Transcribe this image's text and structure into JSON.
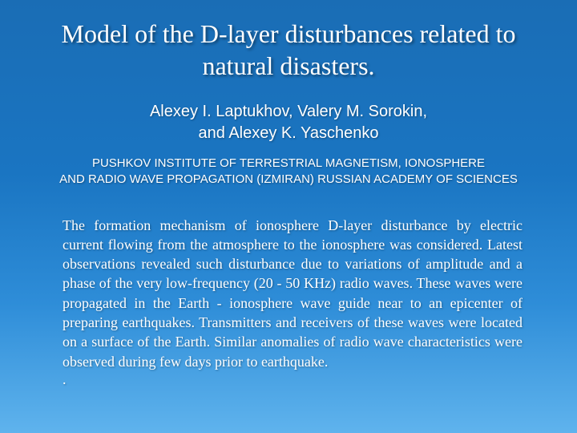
{
  "slide": {
    "background_gradient": [
      "#1a6db5",
      "#1a75c2",
      "#2e8dd8",
      "#5fb3ed"
    ],
    "text_color": "#ffffff",
    "shadow_color": "rgba(0,0,0,0.45)",
    "title": "Model of the D-layer disturbances related to natural disasters.",
    "title_fontsize": 32,
    "title_fontfamily": "Times New Roman",
    "authors_line1": "Alexey I. Laptukhov, Valery M. Sorokin,",
    "authors_line2": "and Alexey K. Yaschenko",
    "authors_fontsize": 20,
    "authors_fontfamily": "Arial",
    "affiliation_line1": "PUSHKOV  INSTITUTE OF TERRESTRIAL MAGNETISM, IONOSPHERE",
    "affiliation_line2": "AND RADIO WAVE PROPAGATION (IZMIRAN) RUSSIAN ACADEMY OF SCIENCES",
    "affiliation_fontsize": 15,
    "affiliation_fontfamily": "Arial",
    "abstract": "The formation mechanism of ionosphere D-layer disturbance by electric current flowing from the atmosphere to the ionosphere was considered. Latest observations revealed such disturbance due to variations of amplitude and a phase of the very low-frequency (20 - 50 KHz) radio waves. These waves were propagated in the Earth - ionosphere wave guide near to an epicenter of preparing earthquakes. Transmitters and receivers of these waves were located on a surface of the Earth. Similar anomalies of radio wave characteristics were observed during few days prior to earthquake.",
    "abstract_fontsize": 18,
    "abstract_fontfamily": "Times New Roman",
    "trailing_dot": "."
  }
}
